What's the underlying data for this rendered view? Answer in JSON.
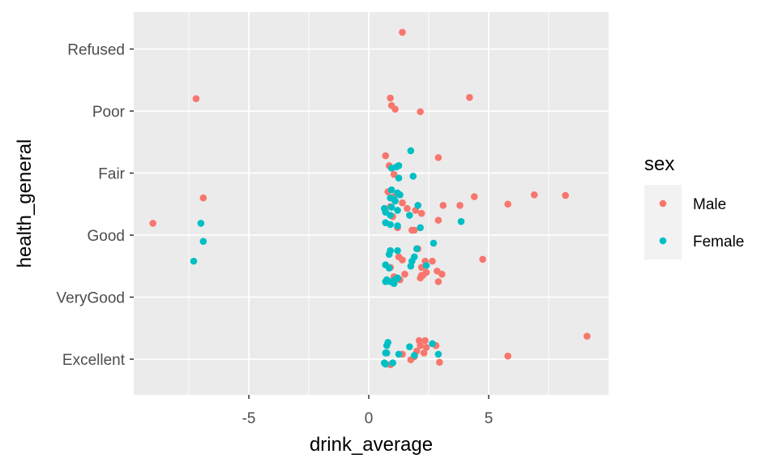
{
  "chart_data": {
    "type": "scatter",
    "xlabel": "drink_average",
    "ylabel": "health_general",
    "xlim": [
      -9.8,
      10.0
    ],
    "x_ticks": [
      -5,
      0,
      5
    ],
    "x_tick_labels": [
      "-5",
      "0",
      "5"
    ],
    "categories": [
      "Excellent",
      "VeryGood",
      "Good",
      "Fair",
      "Poor",
      "Refused"
    ],
    "grid": true,
    "legend": {
      "title": "sex",
      "position": "right"
    },
    "series": [
      {
        "name": "Male",
        "color": "#F8766D",
        "points": [
          [
            1.4,
            5.27
          ],
          [
            4.2,
            4.22
          ],
          [
            0.9,
            4.21
          ],
          [
            -7.2,
            4.2
          ],
          [
            0.95,
            4.09
          ],
          [
            1.1,
            4.03
          ],
          [
            2.15,
            3.99
          ],
          [
            2.9,
            3.25
          ],
          [
            0.7,
            3.28
          ],
          [
            0.85,
            3.12
          ],
          [
            1.05,
            2.98
          ],
          [
            -6.9,
            2.6
          ],
          [
            0.8,
            2.7
          ],
          [
            1.05,
            2.62
          ],
          [
            1.4,
            2.52
          ],
          [
            0.9,
            2.46
          ],
          [
            1.6,
            2.43
          ],
          [
            2.2,
            2.35
          ],
          [
            1.95,
            2.4
          ],
          [
            3.1,
            2.48
          ],
          [
            3.8,
            2.48
          ],
          [
            4.4,
            2.62
          ],
          [
            5.8,
            2.5
          ],
          [
            6.9,
            2.65
          ],
          [
            8.2,
            2.64
          ],
          [
            1.0,
            2.3
          ],
          [
            2.9,
            2.24
          ],
          [
            1.2,
            2.12
          ],
          [
            1.8,
            2.08
          ],
          [
            1.9,
            2.08
          ],
          [
            -9.0,
            2.19
          ],
          [
            2.05,
            1.78
          ],
          [
            1.25,
            1.65
          ],
          [
            1.4,
            1.6
          ],
          [
            2.35,
            1.58
          ],
          [
            2.65,
            1.58
          ],
          [
            4.75,
            1.61
          ],
          [
            0.9,
            1.48
          ],
          [
            2.2,
            1.48
          ],
          [
            2.85,
            1.42
          ],
          [
            2.4,
            1.4
          ],
          [
            1.5,
            1.37
          ],
          [
            3.05,
            1.37
          ],
          [
            1.05,
            1.33
          ],
          [
            2.2,
            1.35
          ],
          [
            2.25,
            1.35
          ],
          [
            1.3,
            1.28
          ],
          [
            2.15,
            1.31
          ],
          [
            2.9,
            1.25
          ],
          [
            9.1,
            0.37
          ],
          [
            2.1,
            0.3
          ],
          [
            2.35,
            0.3
          ],
          [
            2.15,
            0.22
          ],
          [
            2.8,
            0.22
          ],
          [
            2.4,
            0.19
          ],
          [
            2.0,
            0.13
          ],
          [
            2.3,
            0.1
          ],
          [
            1.4,
            0.08
          ],
          [
            5.8,
            0.05
          ],
          [
            1.9,
            0.04
          ],
          [
            1.75,
            -0.01
          ],
          [
            2.95,
            -0.05
          ],
          [
            0.9,
            -0.09
          ]
        ]
      },
      {
        "name": "Female",
        "color": "#00BFC4",
        "points": [
          [
            1.75,
            3.36
          ],
          [
            1.15,
            3.1
          ],
          [
            1.25,
            3.12
          ],
          [
            0.95,
            3.08
          ],
          [
            1.85,
            2.95
          ],
          [
            1.25,
            2.92
          ],
          [
            0.95,
            2.73
          ],
          [
            1.2,
            2.68
          ],
          [
            1.3,
            2.65
          ],
          [
            0.9,
            2.6
          ],
          [
            1.05,
            2.58
          ],
          [
            1.1,
            2.55
          ],
          [
            2.05,
            2.48
          ],
          [
            0.65,
            2.43
          ],
          [
            0.95,
            2.45
          ],
          [
            1.2,
            2.4
          ],
          [
            0.7,
            2.37
          ],
          [
            1.7,
            2.32
          ],
          [
            0.9,
            2.32
          ],
          [
            -7.0,
            2.19
          ],
          [
            0.7,
            2.2
          ],
          [
            0.9,
            2.17
          ],
          [
            1.2,
            2.15
          ],
          [
            3.85,
            2.22
          ],
          [
            2.15,
            2.12
          ],
          [
            -6.9,
            1.9
          ],
          [
            2.7,
            1.87
          ],
          [
            0.9,
            1.75
          ],
          [
            1.2,
            1.75
          ],
          [
            0.85,
            1.69
          ],
          [
            2.0,
            1.78
          ],
          [
            1.9,
            1.65
          ],
          [
            -7.3,
            1.58
          ],
          [
            0.7,
            1.52
          ],
          [
            1.8,
            1.58
          ],
          [
            1.75,
            1.5
          ],
          [
            0.85,
            1.47
          ],
          [
            2.4,
            1.51
          ],
          [
            0.75,
            1.28
          ],
          [
            1.1,
            1.28
          ],
          [
            0.7,
            1.25
          ],
          [
            0.9,
            1.25
          ],
          [
            1.2,
            1.3
          ],
          [
            1.05,
            1.22
          ],
          [
            1.2,
            1.31
          ],
          [
            0.8,
            0.27
          ],
          [
            2.65,
            0.25
          ],
          [
            0.75,
            0.22
          ],
          [
            1.7,
            0.2
          ],
          [
            0.7,
            0.1
          ],
          [
            1.25,
            0.08
          ],
          [
            0.75,
            0.1
          ],
          [
            2.9,
            0.08
          ],
          [
            1.9,
            0.06
          ],
          [
            1.0,
            -0.06
          ],
          [
            0.65,
            -0.06
          ],
          [
            0.7,
            -0.08
          ]
        ]
      }
    ]
  }
}
